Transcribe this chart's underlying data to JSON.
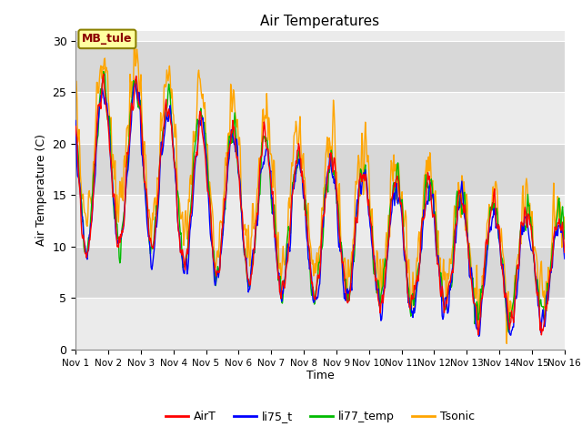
{
  "title": "Air Temperatures",
  "ylabel": "Air Temperature (C)",
  "xlabel": "Time",
  "site_label": "MB_tule",
  "ylim": [
    0,
    31
  ],
  "xlim": [
    0,
    15
  ],
  "yticks": [
    0,
    5,
    10,
    15,
    20,
    25,
    30
  ],
  "xtick_labels": [
    "Nov 1",
    "Nov 2",
    "Nov 3",
    "Nov 4",
    "Nov 5",
    "Nov 6",
    "Nov 7",
    "Nov 8",
    "Nov 9",
    "Nov 10",
    "Nov 11",
    "Nov 12",
    "Nov 13",
    "Nov 14",
    "Nov 15",
    "Nov 16"
  ],
  "colors": {
    "AirT": "#ff0000",
    "li75_t": "#0000ff",
    "li77_temp": "#00bb00",
    "Tsonic": "#ffa500"
  },
  "bg_color_light": "#ebebeb",
  "bg_color_dark": "#d8d8d8",
  "fig_bg": "#ffffff",
  "line_width": 1.0,
  "band_colors": [
    "#ebebeb",
    "#d8d8d8"
  ],
  "grid_color": "#ffffff"
}
